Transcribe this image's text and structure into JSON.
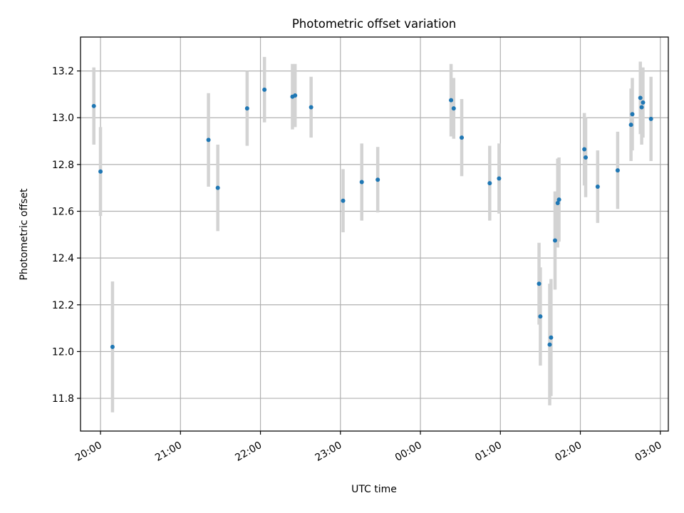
{
  "chart_data": {
    "type": "scatter",
    "title": "Photometric offset variation",
    "xlabel": "UTC time",
    "ylabel": "Photometric offset",
    "grid": true,
    "legend": "none",
    "xlim": [
      "19:45",
      "03:06"
    ],
    "ylim": [
      11.66,
      13.345
    ],
    "x_ticks": [
      "20:00",
      "21:00",
      "22:00",
      "23:00",
      "00:00",
      "01:00",
      "02:00",
      "03:00"
    ],
    "y_ticks": [
      "11.8",
      "12.0",
      "12.2",
      "12.4",
      "12.6",
      "12.8",
      "13.0",
      "13.2"
    ],
    "colors": {
      "marker": "#1f77b4",
      "errorbar": "#d3d3d3",
      "grid": "#b0b0b0"
    },
    "series": [
      {
        "points": [
          {
            "t": "19:55",
            "y": 13.05,
            "err": 0.165
          },
          {
            "t": "20:00",
            "y": 12.77,
            "err": 0.19
          },
          {
            "t": "20:09",
            "y": 12.02,
            "err": 0.28
          },
          {
            "t": "21:21",
            "y": 12.905,
            "err": 0.2
          },
          {
            "t": "21:28",
            "y": 12.7,
            "err": 0.185
          },
          {
            "t": "21:50",
            "y": 13.04,
            "err": 0.16
          },
          {
            "t": "22:03",
            "y": 13.12,
            "err": 0.14
          },
          {
            "t": "22:24",
            "y": 13.09,
            "err": 0.14
          },
          {
            "t": "22:26",
            "y": 13.095,
            "err": 0.135
          },
          {
            "t": "22:38",
            "y": 13.045,
            "err": 0.13
          },
          {
            "t": "23:02",
            "y": 12.645,
            "err": 0.135
          },
          {
            "t": "23:16",
            "y": 12.725,
            "err": 0.165
          },
          {
            "t": "23:28",
            "y": 12.735,
            "err": 0.14
          },
          {
            "t": "00:23",
            "y": 13.075,
            "err": 0.155
          },
          {
            "t": "00:25",
            "y": 13.04,
            "err": 0.13
          },
          {
            "t": "00:31",
            "y": 12.915,
            "err": 0.165
          },
          {
            "t": "00:52",
            "y": 12.72,
            "err": 0.16
          },
          {
            "t": "00:59",
            "y": 12.74,
            "err": 0.15
          },
          {
            "t": "01:29",
            "y": 12.29,
            "err": 0.175
          },
          {
            "t": "01:30",
            "y": 12.15,
            "err": 0.21
          },
          {
            "t": "01:37",
            "y": 12.03,
            "err": 0.26
          },
          {
            "t": "01:38",
            "y": 12.06,
            "err": 0.25
          },
          {
            "t": "01:41",
            "y": 12.475,
            "err": 0.21
          },
          {
            "t": "01:43",
            "y": 12.635,
            "err": 0.19
          },
          {
            "t": "01:44",
            "y": 12.65,
            "err": 0.18
          },
          {
            "t": "02:03",
            "y": 12.865,
            "err": 0.155
          },
          {
            "t": "02:04",
            "y": 12.83,
            "err": 0.17
          },
          {
            "t": "02:13",
            "y": 12.705,
            "err": 0.155
          },
          {
            "t": "02:28",
            "y": 12.775,
            "err": 0.165
          },
          {
            "t": "02:38",
            "y": 12.97,
            "err": 0.155
          },
          {
            "t": "02:39",
            "y": 13.015,
            "err": 0.155
          },
          {
            "t": "02:45",
            "y": 13.085,
            "err": 0.155
          },
          {
            "t": "02:46",
            "y": 13.045,
            "err": 0.16
          },
          {
            "t": "02:47",
            "y": 13.065,
            "err": 0.15
          },
          {
            "t": "02:53",
            "y": 12.995,
            "err": 0.18
          }
        ]
      }
    ]
  }
}
